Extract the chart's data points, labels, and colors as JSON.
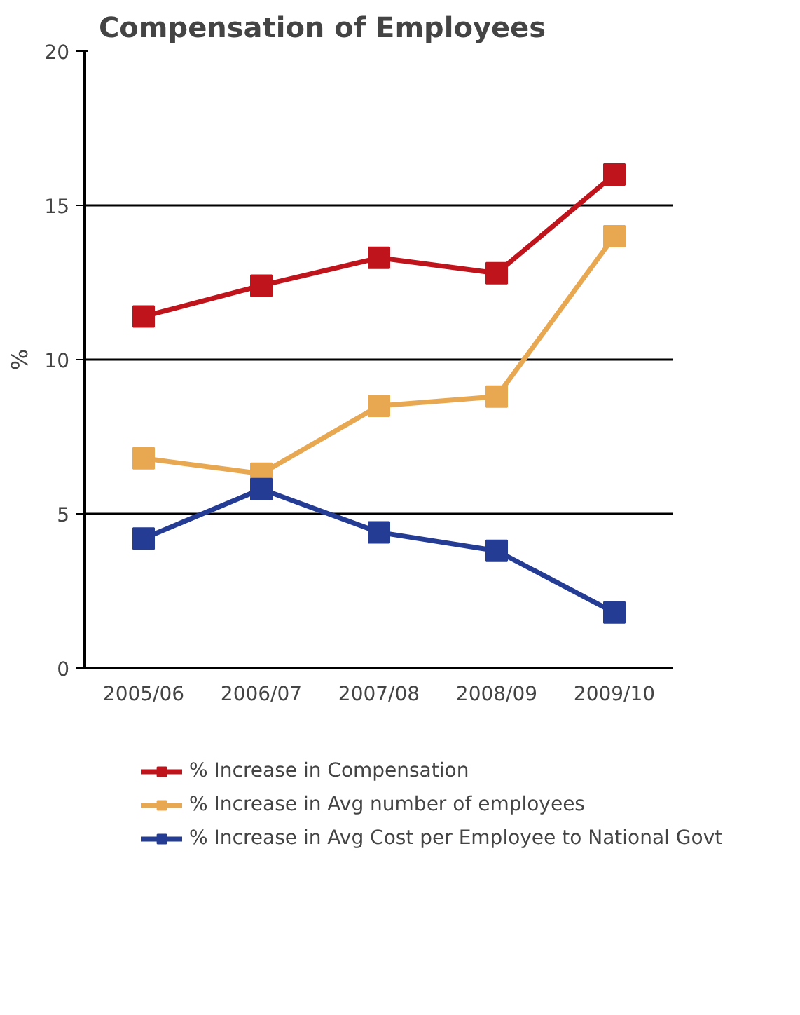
{
  "chart_data": {
    "type": "line",
    "title": "Compensation of Employees",
    "ylabel": "%",
    "categories": [
      "2005/06",
      "2006/07",
      "2007/08",
      "2008/09",
      "2009/10"
    ],
    "series": [
      {
        "name": "% Increase in Compensation",
        "color": "#c0141c",
        "values": [
          11.4,
          12.4,
          13.3,
          12.8,
          16.0
        ]
      },
      {
        "name": "% Increase in Avg number of employees",
        "color": "#e8a852",
        "values": [
          6.8,
          6.3,
          8.5,
          8.8,
          14.0
        ]
      },
      {
        "name": "% Increase in Avg Cost per Employee to National Govt",
        "color": "#253c94",
        "values": [
          4.2,
          5.8,
          4.4,
          3.8,
          1.8
        ]
      }
    ],
    "ylim": [
      0,
      20
    ],
    "yticks": [
      0,
      5,
      10,
      15,
      20
    ],
    "grid": "y",
    "legend": "bottom",
    "marker": "square",
    "line_style": "solid"
  }
}
